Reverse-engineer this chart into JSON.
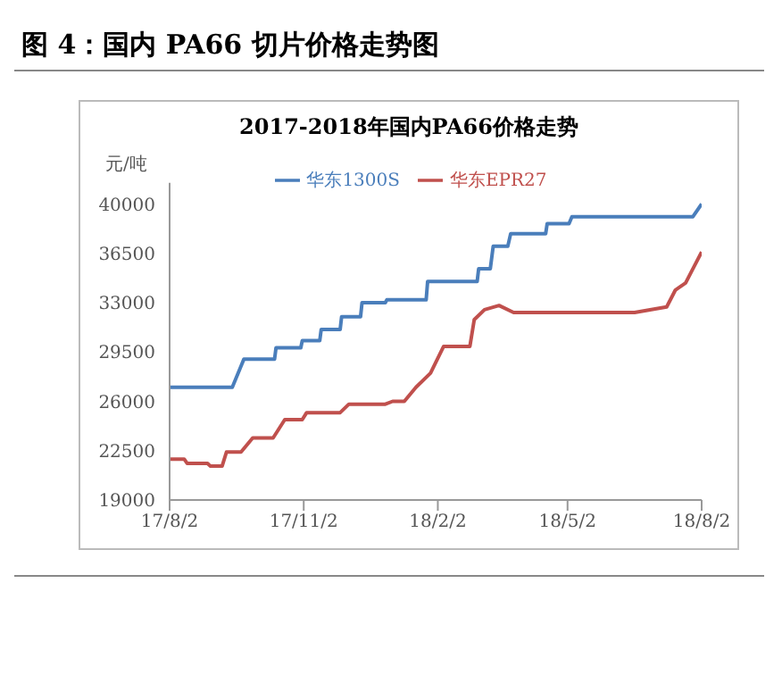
{
  "chart_data": {
    "type": "line",
    "title": "图 4：国内 PA66 切片价格走势图",
    "subtitle": "2017-2018年国内PA66价格走势",
    "ylabel": "元/吨",
    "xlim": [
      "2017-08-02",
      "2018-08-02"
    ],
    "xticks": [
      {
        "value": "2017-08-02",
        "label": "17/8/2"
      },
      {
        "value": "2017-11-02",
        "label": "17/11/2"
      },
      {
        "value": "2018-02-02",
        "label": "18/2/2"
      },
      {
        "value": "2018-05-02",
        "label": "18/5/2"
      },
      {
        "value": "2018-08-02",
        "label": "18/8/2"
      }
    ],
    "ylim": [
      19000,
      41500
    ],
    "yticks": [
      19000,
      22500,
      26000,
      29500,
      33000,
      36500,
      40000
    ],
    "grid": false,
    "legend": "top",
    "marker": "none",
    "line_style": "solid",
    "series": [
      {
        "name": "华东1300S",
        "color": "#4a7ebb",
        "x": [
          "2017-08-02",
          "2017-09-14",
          "2017-09-20",
          "2017-09-22",
          "2017-10-13",
          "2017-10-14",
          "2017-10-31",
          "2017-11-01",
          "2017-11-13",
          "2017-11-14",
          "2017-11-27",
          "2017-11-28",
          "2017-12-11",
          "2017-12-12",
          "2017-12-28",
          "2017-12-29",
          "2018-01-25",
          "2018-01-26",
          "2018-03-01",
          "2018-03-02",
          "2018-03-10",
          "2018-03-12",
          "2018-03-22",
          "2018-03-24",
          "2018-04-17",
          "2018-04-18",
          "2018-05-03",
          "2018-05-05",
          "2018-07-27",
          "2018-08-02"
        ],
        "values": [
          27000,
          27000,
          28500,
          29000,
          29000,
          29800,
          29800,
          30300,
          30300,
          31100,
          31100,
          32000,
          32000,
          33000,
          33000,
          33200,
          33200,
          34500,
          34500,
          35400,
          35400,
          37000,
          37000,
          37900,
          37900,
          38600,
          38600,
          39100,
          39100,
          40000
        ]
      },
      {
        "name": "华东EPR27",
        "color": "#c0504d",
        "x": [
          "2017-08-02",
          "2017-08-12",
          "2017-08-14",
          "2017-08-28",
          "2017-08-30",
          "2017-09-07",
          "2017-09-10",
          "2017-09-20",
          "2017-09-28",
          "2017-10-12",
          "2017-10-20",
          "2017-11-01",
          "2017-11-04",
          "2017-11-27",
          "2017-12-03",
          "2017-12-28",
          "2018-01-02",
          "2018-01-10",
          "2018-01-18",
          "2018-01-28",
          "2018-02-06",
          "2018-02-24",
          "2018-02-27",
          "2018-03-06",
          "2018-03-16",
          "2018-03-26",
          "2018-06-17",
          "2018-07-09",
          "2018-07-15",
          "2018-07-22",
          "2018-07-28",
          "2018-08-02"
        ],
        "values": [
          21900,
          21900,
          21600,
          21600,
          21400,
          21400,
          22400,
          22400,
          23400,
          23400,
          24700,
          24700,
          25200,
          25200,
          25800,
          25800,
          26000,
          26000,
          27000,
          28000,
          29900,
          29900,
          31800,
          32500,
          32800,
          32300,
          32300,
          32700,
          33900,
          34400,
          35600,
          36600
        ]
      }
    ]
  }
}
